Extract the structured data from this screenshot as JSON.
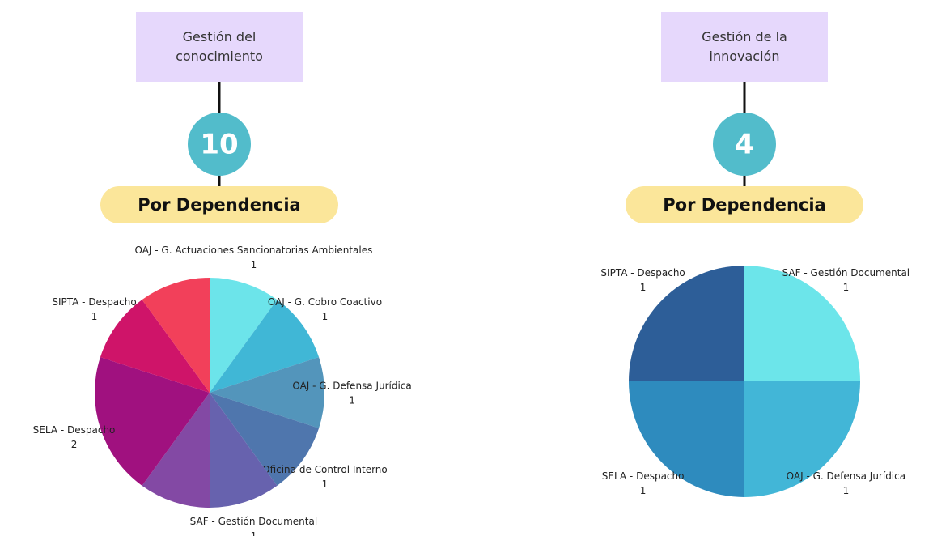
{
  "chart_data": [
    {
      "type": "pie",
      "title": "Gestión del conocimiento",
      "total": 10,
      "subtitle": "Por Dependencia",
      "categories": [
        "OAJ - G. Actuaciones Sancionatorias Ambientales",
        "OAJ - G. Cobro Coactivo",
        "OAJ - G. Defensa Jurídica",
        "Oficina de Control Interno",
        "SAF - Gestión Documental",
        null,
        "SELA - Despacho",
        "SIPTA - Despacho",
        null
      ],
      "values": [
        1,
        1,
        1,
        1,
        1,
        1,
        2,
        1,
        1
      ],
      "colors": [
        "#6ce4ea",
        "#40b7d6",
        "#5395bb",
        "#4f76ad",
        "#6762ae",
        "#8349a4",
        "#a0117f",
        "#cf1469",
        "#f2405a"
      ]
    },
    {
      "type": "pie",
      "title": "Gestión de la innovación",
      "total": 4,
      "subtitle": "Por Dependencia",
      "categories": [
        "SAF - Gestión Documental",
        "OAJ - G. Defensa Jurídica",
        "SELA - Despacho",
        "SIPTA - Despacho"
      ],
      "values": [
        1,
        1,
        1,
        1
      ],
      "colors": [
        "#6ce5ea",
        "#42b6d7",
        "#2e8bbe",
        "#2d5e98"
      ]
    }
  ]
}
